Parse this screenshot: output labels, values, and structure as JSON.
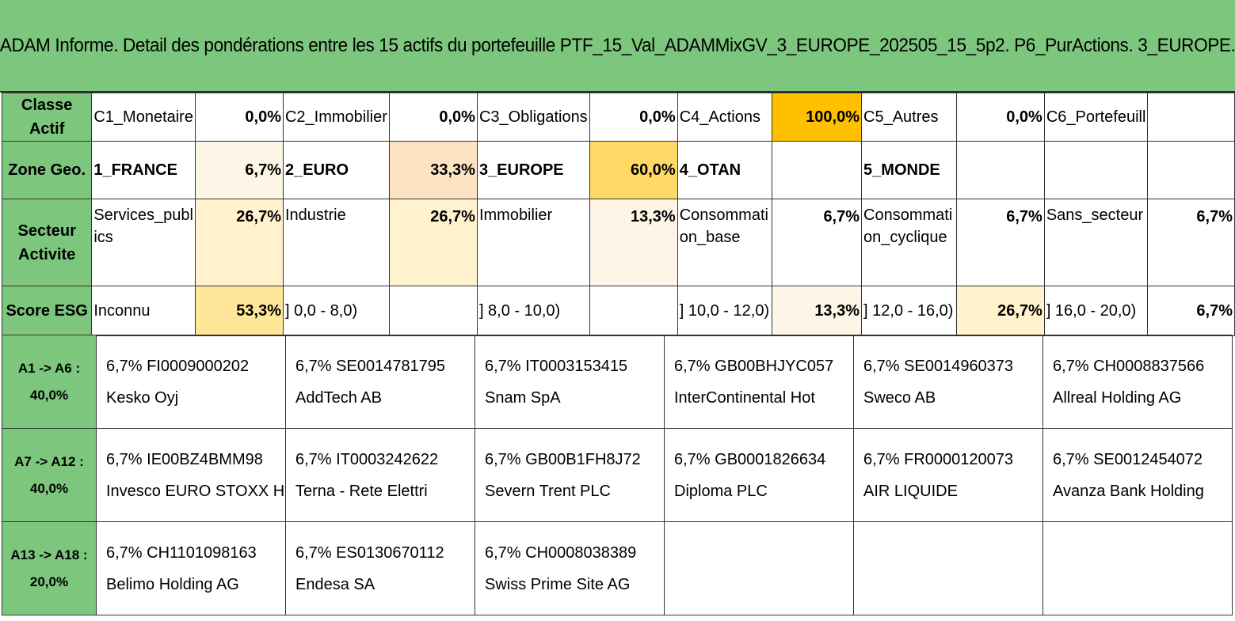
{
  "title": "ADAM Informe. Detail des pondérations entre les 15 actifs du portefeuille PTF_15_Val_ADAMMixGV_3_EUROPE_202505_15_5p2. P6_PurActions. 3_EUROPE.",
  "colors": {
    "header_green": "#7dc67d",
    "highlight_orange": "#ffc000",
    "pale_yellow": "#fff2cc",
    "soft_yellow": "#ffe699",
    "cream": "#fdf5e6"
  },
  "classe_actif": {
    "label": "Classe Actif",
    "items": [
      {
        "name": "C1_Monetaire",
        "pct": "0,0%"
      },
      {
        "name": "C2_Immobilier",
        "pct": "0,0%"
      },
      {
        "name": "C3_Obligations",
        "pct": "0,0%"
      },
      {
        "name": "C4_Actions",
        "pct": "100,0%"
      },
      {
        "name": "C5_Autres",
        "pct": "0,0%"
      },
      {
        "name": "C6_Portefeuill",
        "pct": ""
      }
    ]
  },
  "zone_geo": {
    "label": "Zone Geo.",
    "items": [
      {
        "name": "1_FRANCE",
        "pct": "6,7%"
      },
      {
        "name": "2_EURO",
        "pct": "33,3%"
      },
      {
        "name": "3_EUROPE",
        "pct": "60,0%"
      },
      {
        "name": "4_OTAN",
        "pct": ""
      },
      {
        "name": "5_MONDE",
        "pct": ""
      },
      {
        "name": "",
        "pct": ""
      }
    ]
  },
  "secteur": {
    "label": "Secteur Activite",
    "items": [
      {
        "name": "Services_publics",
        "pct": "26,7%"
      },
      {
        "name": "Industrie",
        "pct": "26,7%"
      },
      {
        "name": "Immobilier",
        "pct": "13,3%"
      },
      {
        "name": "Consommation_base",
        "pct": "6,7%"
      },
      {
        "name": "Consommation_cyclique",
        "pct": "6,7%"
      },
      {
        "name": "Sans_secteur",
        "pct": "6,7%"
      }
    ]
  },
  "score_esg": {
    "label": "Score ESG",
    "items": [
      {
        "name": "Inconnu",
        "pct": "53,3%"
      },
      {
        "name": "] 0,0 - 8,0)",
        "pct": ""
      },
      {
        "name": "] 8,0 - 10,0)",
        "pct": ""
      },
      {
        "name": "] 10,0 - 12,0)",
        "pct": "13,3%"
      },
      {
        "name": "] 12,0 - 16,0)",
        "pct": "26,7%"
      },
      {
        "name": "] 16,0 - 20,0)",
        "pct": "6,7%"
      }
    ]
  },
  "asset_rows": [
    {
      "range": "A1 -> A6 :",
      "total": "40,0%",
      "assets": [
        {
          "line1": "6,7% FI0009000202",
          "line2": "Kesko Oyj"
        },
        {
          "line1": "6,7% SE0014781795",
          "line2": "AddTech AB"
        },
        {
          "line1": "6,7% IT0003153415",
          "line2": "Snam SpA"
        },
        {
          "line1": "6,7% GB00BHJYC057",
          "line2": "InterContinental Hot"
        },
        {
          "line1": "6,7% SE0014960373",
          "line2": "Sweco AB"
        },
        {
          "line1": "6,7% CH0008837566",
          "line2": "Allreal Holding AG"
        }
      ]
    },
    {
      "range": "A7 -> A12 :",
      "total": "40,0%",
      "assets": [
        {
          "line1": "6,7% IE00BZ4BMM98",
          "line2": "Invesco EURO STOXX H"
        },
        {
          "line1": "6,7% IT0003242622",
          "line2": "Terna - Rete Elettri"
        },
        {
          "line1": "6,7% GB00B1FH8J72",
          "line2": "Severn Trent PLC"
        },
        {
          "line1": "6,7% GB0001826634",
          "line2": "Diploma PLC"
        },
        {
          "line1": "6,7% FR0000120073",
          "line2": "AIR LIQUIDE"
        },
        {
          "line1": "6,7% SE0012454072",
          "line2": "Avanza Bank Holding"
        }
      ]
    },
    {
      "range": "A13 -> A18 :",
      "total": "20,0%",
      "assets": [
        {
          "line1": "6,7% CH1101098163",
          "line2": "Belimo Holding AG"
        },
        {
          "line1": "6,7% ES0130670112",
          "line2": "Endesa SA"
        },
        {
          "line1": "6,7% CH0008038389",
          "line2": "Swiss Prime Site AG"
        },
        {
          "line1": "",
          "line2": ""
        },
        {
          "line1": "",
          "line2": ""
        },
        {
          "line1": "",
          "line2": ""
        }
      ]
    }
  ]
}
